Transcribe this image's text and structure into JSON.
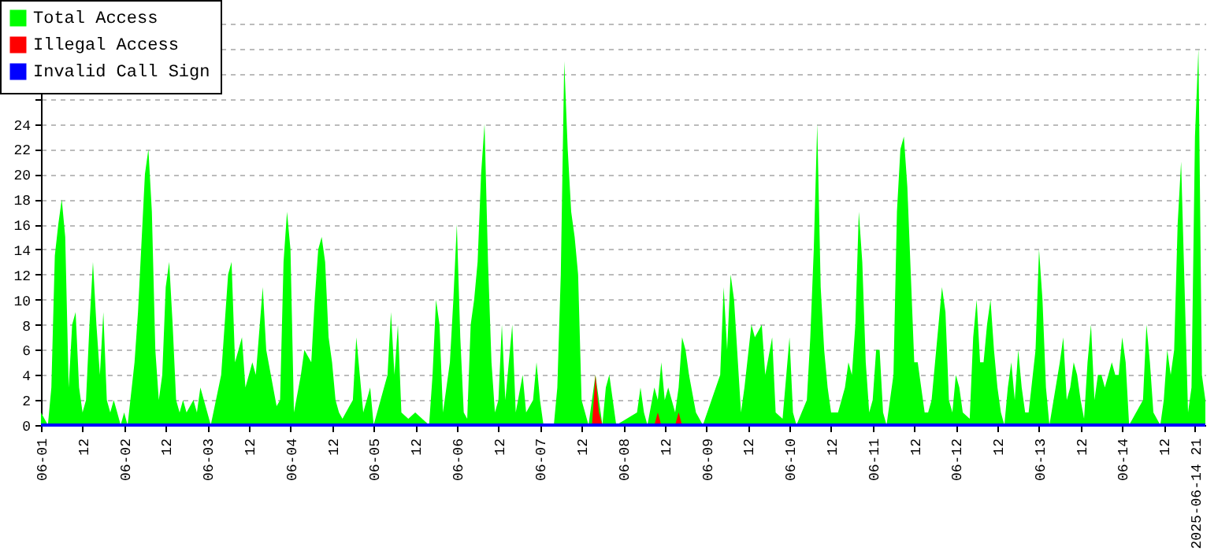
{
  "chart_data": {
    "type": "area",
    "grid": "y",
    "legend": "top left",
    "xlim": [
      "2025-06-01T00:00",
      "2025-06-15T00:00"
    ],
    "xticks": [
      {
        "value": "2025-06-01T00:00",
        "label": "06-01"
      },
      {
        "value": "2025-06-01T12:00",
        "label": "12"
      },
      {
        "value": "2025-06-02T00:00",
        "label": "06-02"
      },
      {
        "value": "2025-06-02T12:00",
        "label": "12"
      },
      {
        "value": "2025-06-03T00:00",
        "label": "06-03"
      },
      {
        "value": "2025-06-03T12:00",
        "label": "12"
      },
      {
        "value": "2025-06-04T00:00",
        "label": "06-04"
      },
      {
        "value": "2025-06-04T12:00",
        "label": "12"
      },
      {
        "value": "2025-06-05T00:00",
        "label": "06-05"
      },
      {
        "value": "2025-06-05T12:00",
        "label": "12"
      },
      {
        "value": "2025-06-06T00:00",
        "label": "06-06"
      },
      {
        "value": "2025-06-06T12:00",
        "label": "12"
      },
      {
        "value": "2025-06-07T00:00",
        "label": "06-07"
      },
      {
        "value": "2025-06-07T12:00",
        "label": "12"
      },
      {
        "value": "2025-06-08T00:00",
        "label": "06-08"
      },
      {
        "value": "2025-06-08T12:00",
        "label": "12"
      },
      {
        "value": "2025-06-09T00:00",
        "label": "06-09"
      },
      {
        "value": "2025-06-09T12:00",
        "label": "12"
      },
      {
        "value": "2025-06-10T00:00",
        "label": "06-10"
      },
      {
        "value": "2025-06-10T12:00",
        "label": "12"
      },
      {
        "value": "2025-06-11T00:00",
        "label": "06-11"
      },
      {
        "value": "2025-06-11T12:00",
        "label": "12"
      },
      {
        "value": "2025-06-12T00:00",
        "label": "06-12"
      },
      {
        "value": "2025-06-12T12:00",
        "label": "12"
      },
      {
        "value": "2025-06-13T00:00",
        "label": "06-13"
      },
      {
        "value": "2025-06-13T12:00",
        "label": "12"
      },
      {
        "value": "2025-06-14T00:00",
        "label": "06-14"
      },
      {
        "value": "2025-06-14T12:00",
        "label": "12"
      },
      {
        "value": "2025-06-14T21:00",
        "label": "2025-06-14 21"
      }
    ],
    "ylim": [
      0,
      32
    ],
    "yticks": [
      0,
      2,
      4,
      6,
      8,
      10,
      12,
      14,
      16,
      18,
      20,
      22,
      24,
      {
        "value": 26,
        "label": null
      },
      {
        "value": 28,
        "label": null
      },
      {
        "value": 30,
        "label": null
      },
      {
        "value": 32,
        "label": null
      }
    ],
    "series": [
      {
        "name": "Total Access",
        "color": "#00ff00",
        "x": [
          "2025-06-01T00:00",
          "2025-06-01T02:00",
          "2025-06-01T03:00",
          "2025-06-01T04:00",
          "2025-06-01T05:00",
          "2025-06-01T06:00",
          "2025-06-01T07:00",
          "2025-06-01T08:00",
          "2025-06-01T09:00",
          "2025-06-01T10:00",
          "2025-06-01T11:00",
          "2025-06-01T12:00",
          "2025-06-01T13:00",
          "2025-06-01T14:00",
          "2025-06-01T15:00",
          "2025-06-01T16:00",
          "2025-06-01T17:00",
          "2025-06-01T18:00",
          "2025-06-01T19:00",
          "2025-06-01T20:00",
          "2025-06-01T21:00",
          "2025-06-01T22:00",
          "2025-06-01T23:00",
          "2025-06-02T00:00",
          "2025-06-02T01:00",
          "2025-06-02T03:00",
          "2025-06-02T04:00",
          "2025-06-02T06:00",
          "2025-06-02T07:00",
          "2025-06-02T08:00",
          "2025-06-02T09:00",
          "2025-06-02T10:00",
          "2025-06-02T11:00",
          "2025-06-02T12:00",
          "2025-06-02T13:00",
          "2025-06-02T14:00",
          "2025-06-02T15:00",
          "2025-06-02T16:00",
          "2025-06-02T17:00",
          "2025-06-02T18:00",
          "2025-06-02T20:00",
          "2025-06-02T21:00",
          "2025-06-02T22:00",
          "2025-06-03T00:00",
          "2025-06-03T01:00",
          "2025-06-03T04:00",
          "2025-06-03T05:00",
          "2025-06-03T06:00",
          "2025-06-03T07:00",
          "2025-06-03T08:00",
          "2025-06-03T10:00",
          "2025-06-03T11:00",
          "2025-06-03T13:00",
          "2025-06-03T14:00",
          "2025-06-03T16:00",
          "2025-06-03T17:00",
          "2025-06-03T19:00",
          "2025-06-03T20:00",
          "2025-06-03T21:00",
          "2025-06-03T22:00",
          "2025-06-03T23:00",
          "2025-06-04T00:00",
          "2025-06-04T01:00",
          "2025-06-04T03:00",
          "2025-06-04T04:00",
          "2025-06-04T06:00",
          "2025-06-04T07:00",
          "2025-06-04T08:00",
          "2025-06-04T09:00",
          "2025-06-04T10:00",
          "2025-06-04T11:00",
          "2025-06-04T12:00",
          "2025-06-04T13:00",
          "2025-06-04T14:00",
          "2025-06-04T15:00",
          "2025-06-04T17:00",
          "2025-06-04T18:00",
          "2025-06-04T19:00",
          "2025-06-04T20:00",
          "2025-06-04T21:00",
          "2025-06-04T22:00",
          "2025-06-04T23:00",
          "2025-06-05T00:00",
          "2025-06-05T04:00",
          "2025-06-05T05:00",
          "2025-06-05T06:00",
          "2025-06-05T07:00",
          "2025-06-05T08:00",
          "2025-06-05T10:00",
          "2025-06-05T12:00",
          "2025-06-05T14:00",
          "2025-06-05T16:00",
          "2025-06-05T17:00",
          "2025-06-05T18:00",
          "2025-06-05T19:00",
          "2025-06-05T20:00",
          "2025-06-05T22:00",
          "2025-06-05T23:00",
          "2025-06-06T00:00",
          "2025-06-06T01:00",
          "2025-06-06T02:00",
          "2025-06-06T03:00",
          "2025-06-06T04:00",
          "2025-06-06T05:00",
          "2025-06-06T06:00",
          "2025-06-06T07:00",
          "2025-06-06T08:00",
          "2025-06-06T09:00",
          "2025-06-06T10:00",
          "2025-06-06T11:00",
          "2025-06-06T12:00",
          "2025-06-06T13:00",
          "2025-06-06T14:00",
          "2025-06-06T15:00",
          "2025-06-06T16:00",
          "2025-06-06T17:00",
          "2025-06-06T19:00",
          "2025-06-06T20:00",
          "2025-06-06T22:00",
          "2025-06-06T23:00",
          "2025-06-07T00:00",
          "2025-06-07T01:00",
          "2025-06-07T04:00",
          "2025-06-07T05:00",
          "2025-06-07T06:00",
          "2025-06-07T07:00",
          "2025-06-07T08:00",
          "2025-06-07T09:00",
          "2025-06-07T10:00",
          "2025-06-07T11:00",
          "2025-06-07T12:00",
          "2025-06-07T13:00",
          "2025-06-07T14:00",
          "2025-06-07T15:00",
          "2025-06-07T16:00",
          "2025-06-07T17:00",
          "2025-06-07T18:00",
          "2025-06-07T19:00",
          "2025-06-07T20:00",
          "2025-06-07T21:00",
          "2025-06-07T22:00",
          "2025-06-08T04:00",
          "2025-06-08T05:00",
          "2025-06-08T06:00",
          "2025-06-08T07:00",
          "2025-06-08T09:00",
          "2025-06-08T10:00",
          "2025-06-08T11:00",
          "2025-06-08T12:00",
          "2025-06-08T13:00",
          "2025-06-08T15:00",
          "2025-06-08T16:00",
          "2025-06-08T17:00",
          "2025-06-08T18:00",
          "2025-06-08T19:00",
          "2025-06-08T21:00",
          "2025-06-08T23:00",
          "2025-06-09T04:00",
          "2025-06-09T05:00",
          "2025-06-09T06:00",
          "2025-06-09T07:00",
          "2025-06-09T08:00",
          "2025-06-09T10:00",
          "2025-06-09T11:00",
          "2025-06-09T13:00",
          "2025-06-09T14:00",
          "2025-06-09T16:00",
          "2025-06-09T17:00",
          "2025-06-09T19:00",
          "2025-06-09T20:00",
          "2025-06-09T22:00",
          "2025-06-10T00:00",
          "2025-06-10T01:00",
          "2025-06-10T02:00",
          "2025-06-10T05:00",
          "2025-06-10T06:00",
          "2025-06-10T07:00",
          "2025-06-10T08:00",
          "2025-06-10T09:00",
          "2025-06-10T10:00",
          "2025-06-10T11:00",
          "2025-06-10T12:00",
          "2025-06-10T14:00",
          "2025-06-10T15:00",
          "2025-06-10T16:00",
          "2025-06-10T17:00",
          "2025-06-10T18:00",
          "2025-06-10T19:00",
          "2025-06-10T20:00",
          "2025-06-10T21:00",
          "2025-06-10T22:00",
          "2025-06-10T23:00",
          "2025-06-11T00:00",
          "2025-06-11T01:00",
          "2025-06-11T02:00",
          "2025-06-11T03:00",
          "2025-06-11T04:00",
          "2025-06-11T06:00",
          "2025-06-11T07:00",
          "2025-06-11T08:00",
          "2025-06-11T09:00",
          "2025-06-11T10:00",
          "2025-06-11T11:00",
          "2025-06-11T12:00",
          "2025-06-11T13:00",
          "2025-06-11T14:00",
          "2025-06-11T15:00",
          "2025-06-11T16:00",
          "2025-06-11T17:00",
          "2025-06-11T18:00",
          "2025-06-11T19:00",
          "2025-06-11T20:00",
          "2025-06-11T21:00",
          "2025-06-11T22:00",
          "2025-06-11T23:00",
          "2025-06-12T00:00",
          "2025-06-12T01:00",
          "2025-06-12T02:00",
          "2025-06-12T04:00",
          "2025-06-12T05:00",
          "2025-06-12T06:00",
          "2025-06-12T07:00",
          "2025-06-12T08:00",
          "2025-06-12T09:00",
          "2025-06-12T10:00",
          "2025-06-12T11:00",
          "2025-06-12T12:00",
          "2025-06-12T13:00",
          "2025-06-12T14:00",
          "2025-06-12T15:00",
          "2025-06-12T16:00",
          "2025-06-12T17:00",
          "2025-06-12T18:00",
          "2025-06-12T19:00",
          "2025-06-12T20:00",
          "2025-06-12T21:00",
          "2025-06-12T23:00",
          "2025-06-13T00:00",
          "2025-06-13T01:00",
          "2025-06-13T02:00",
          "2025-06-13T03:00",
          "2025-06-13T06:00",
          "2025-06-13T07:00",
          "2025-06-13T08:00",
          "2025-06-13T09:00",
          "2025-06-13T10:00",
          "2025-06-13T11:00",
          "2025-06-13T12:00",
          "2025-06-13T13:00",
          "2025-06-13T14:00",
          "2025-06-13T15:00",
          "2025-06-13T16:00",
          "2025-06-13T17:00",
          "2025-06-13T18:00",
          "2025-06-13T19:00",
          "2025-06-13T21:00",
          "2025-06-13T22:00",
          "2025-06-13T23:00",
          "2025-06-14T00:00",
          "2025-06-14T01:00",
          "2025-06-14T02:00",
          "2025-06-14T06:00",
          "2025-06-14T07:00",
          "2025-06-14T08:00",
          "2025-06-14T09:00",
          "2025-06-14T11:00",
          "2025-06-14T12:00",
          "2025-06-14T13:00",
          "2025-06-14T14:00",
          "2025-06-14T15:00",
          "2025-06-14T16:00",
          "2025-06-14T17:00",
          "2025-06-14T18:00",
          "2025-06-14T19:00",
          "2025-06-14T20:00",
          "2025-06-14T21:00",
          "2025-06-14T22:00",
          "2025-06-14T23:00",
          "2025-06-15T00:00"
        ],
        "values": [
          1,
          0,
          3,
          13.5,
          16,
          18,
          15,
          3,
          8,
          9,
          3,
          1,
          2,
          8,
          13,
          8,
          4,
          9,
          2,
          1,
          2,
          1,
          0,
          1,
          0,
          5,
          9,
          20,
          22,
          17,
          6,
          2,
          4,
          11,
          13,
          8,
          2,
          1,
          2,
          1,
          2,
          1,
          3,
          1,
          0,
          4,
          8,
          12,
          13,
          5,
          7,
          3,
          5,
          4,
          11,
          6,
          3,
          1.5,
          2,
          13,
          17,
          14,
          1,
          4,
          6,
          5,
          10,
          14,
          15,
          13,
          7,
          5,
          2,
          1,
          0.5,
          1.5,
          2,
          7,
          4,
          1,
          2,
          3,
          0,
          4,
          9,
          4,
          8,
          1,
          0.5,
          1,
          0.5,
          0,
          4,
          10,
          8,
          1,
          5,
          10,
          16,
          7,
          1,
          0.5,
          8,
          10,
          13,
          20,
          24,
          13,
          5,
          1,
          2,
          8,
          2,
          5,
          8,
          1,
          4,
          1,
          2,
          5,
          2,
          0,
          0,
          3,
          12,
          29,
          22,
          17,
          15,
          12,
          2,
          1,
          0,
          2,
          4,
          2,
          0,
          3,
          4,
          2,
          0,
          1,
          3,
          1,
          0,
          3,
          2,
          5,
          2,
          3,
          1,
          3,
          7,
          6,
          4,
          1,
          0,
          4,
          11,
          6,
          12,
          10,
          1,
          3,
          8,
          7,
          8,
          4,
          7,
          1,
          0.5,
          7,
          1,
          0,
          2,
          7,
          14,
          24,
          11,
          6,
          3,
          1,
          1,
          2,
          3,
          5,
          4,
          8,
          17,
          13,
          5,
          1,
          2,
          6,
          6,
          1,
          0,
          4,
          17,
          22,
          23,
          19,
          12,
          5,
          5,
          3,
          1,
          1,
          2,
          5,
          8,
          11,
          9,
          2,
          1,
          4,
          3,
          1,
          0.5,
          7,
          10,
          5,
          5,
          8,
          10,
          6,
          3,
          1,
          0,
          3,
          5,
          2,
          6,
          3,
          1,
          1,
          6,
          14,
          10,
          3,
          0,
          5,
          7,
          2,
          3,
          5,
          4,
          2,
          0.5,
          5,
          8,
          2,
          4,
          4,
          3,
          5,
          4,
          4,
          7,
          5,
          0,
          2,
          8,
          5,
          1,
          0,
          2,
          6,
          4,
          6,
          16,
          21,
          11,
          1,
          3,
          23,
          30,
          4,
          2
        ]
      },
      {
        "name": "Illegal Access",
        "color": "#ff0000",
        "x": [
          "2025-06-07T15:00",
          "2025-06-07T16:00",
          "2025-06-07T17:00",
          "2025-06-07T18:00",
          "2025-06-08T09:00",
          "2025-06-08T10:00",
          "2025-06-08T11:00",
          "2025-06-08T15:00",
          "2025-06-08T16:00",
          "2025-06-08T17:00"
        ],
        "values": [
          0,
          4,
          1,
          0,
          0,
          1,
          0,
          0,
          1,
          0
        ]
      },
      {
        "name": "Invalid Call Sign",
        "color": "#0000ff",
        "type": "line",
        "x": [
          "2025-06-01T00:00",
          "2025-06-15T00:00"
        ],
        "values": [
          0,
          0
        ]
      }
    ]
  }
}
